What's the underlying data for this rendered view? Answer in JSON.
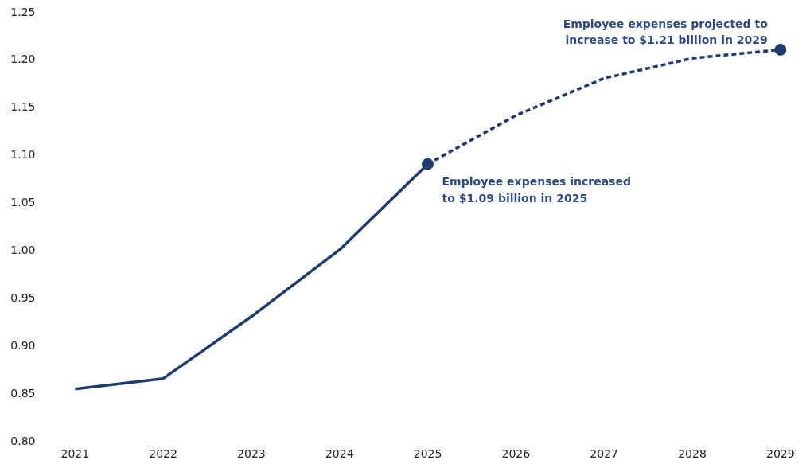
{
  "chart_data": {
    "type": "line",
    "categories": [
      "2021",
      "2022",
      "2023",
      "2024",
      "2025",
      "2026",
      "2027",
      "2028",
      "2029"
    ],
    "series": [
      {
        "color": "#203a6b",
        "line_style": "solid",
        "values": [
          0.854,
          0.865,
          0.93,
          1.0,
          1.09,
          null,
          null,
          null,
          null
        ]
      },
      {
        "color": "#203a6b",
        "line_style": "dashed",
        "values": [
          null,
          null,
          null,
          null,
          1.09,
          1.141,
          1.18,
          1.201,
          1.21
        ]
      },
      {
        "type": "scatter",
        "color": "#203a6b",
        "marker": "circle",
        "values": [
          null,
          null,
          null,
          null,
          1.09,
          null,
          null,
          null,
          1.21
        ]
      }
    ],
    "ylim": [
      0.8,
      1.25
    ],
    "yticks": [
      {
        "value": 0.8,
        "label": "0.80"
      },
      {
        "value": 0.85,
        "label": "0.85"
      },
      {
        "value": 0.9,
        "label": "0.90"
      },
      {
        "value": 0.95,
        "label": "0.95"
      },
      {
        "value": 1.0,
        "label": "1.00"
      },
      {
        "value": 1.05,
        "label": "1.05"
      },
      {
        "value": 1.1,
        "label": "1.10"
      },
      {
        "value": 1.15,
        "label": "1.15"
      },
      {
        "value": 1.2,
        "label": "1.20"
      },
      {
        "value": 1.25,
        "label": "1.25"
      }
    ],
    "grid": false,
    "annotations": [
      {
        "text": "Employee expenses projected to\nincrease to $1.21 billion in 2029",
        "x": "2029",
        "y": 1.21
      },
      {
        "text": "Employee expenses increased\nto $1.09 billion in 2025",
        "x": "2025",
        "y": 1.09
      }
    ]
  }
}
